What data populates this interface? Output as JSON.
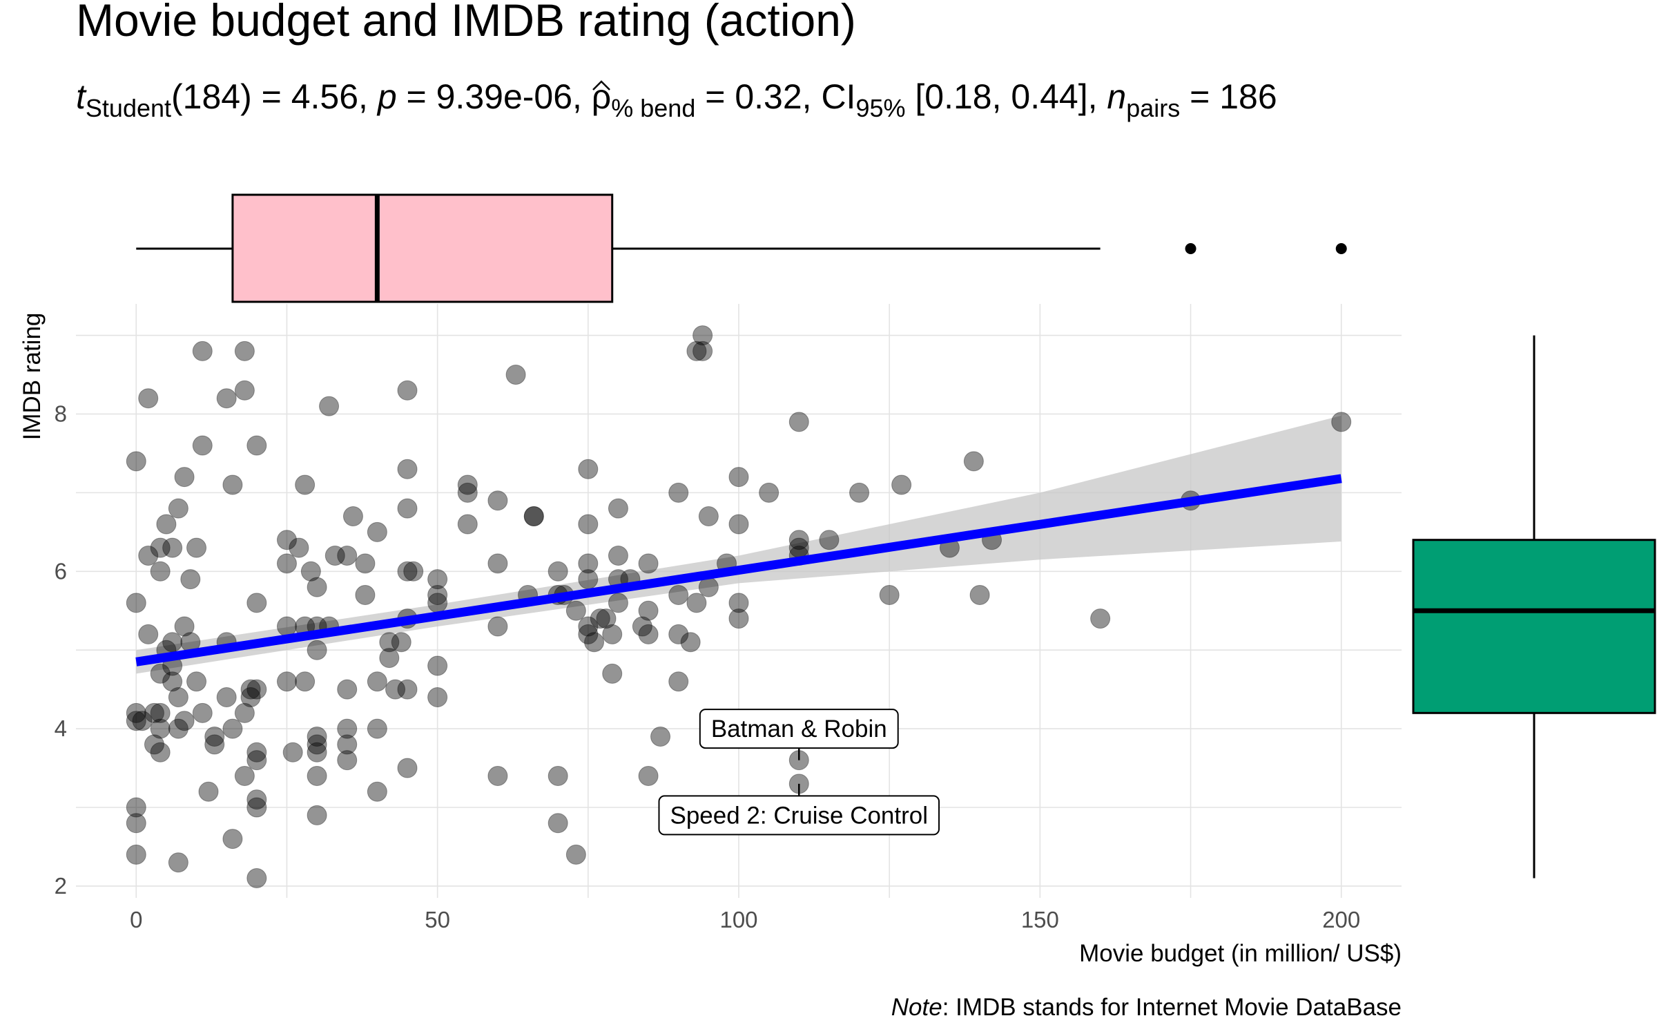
{
  "chart_data": {
    "type": "scatter",
    "title": "Movie budget and IMDB rating (action)",
    "subtitle": {
      "t_label": "t",
      "t_sub": "Student",
      "t_value": "(184) = 4.56, ",
      "p_label": "p",
      "p_value": " = 9.39e-06, ",
      "rho_label": "ρ",
      "rho_sub": "% bend",
      "rho_value": " = 0.32, CI",
      "ci_sub": "95%",
      "ci_value": " [0.18, 0.44], ",
      "n_label": "n",
      "n_sub": "pairs",
      "n_value": " = 186"
    },
    "xlabel": "Movie budget (in million/ US$)",
    "ylabel": "IMDB rating",
    "xlim": [
      -10,
      210
    ],
    "ylim": [
      1.85,
      9.4
    ],
    "x_ticks": [
      0,
      50,
      100,
      150,
      200
    ],
    "y_ticks": [
      2,
      4,
      6,
      8
    ],
    "x_tick_labels": [
      "0",
      "50",
      "100",
      "150",
      "200"
    ],
    "y_tick_labels": [
      "2",
      "4",
      "6",
      "8"
    ],
    "grid": true,
    "caption": {
      "note_label": "Note",
      "note_text": ": IMDB stands for Internet Movie DataBase"
    },
    "regression": {
      "x_start": 0,
      "y_start": 4.85,
      "x_end": 200,
      "y_end": 7.18,
      "color": "#0000ff",
      "ci_band": [
        [
          0,
          4.7,
          5.0
        ],
        [
          50,
          5.3,
          5.58
        ],
        [
          100,
          5.85,
          6.2
        ],
        [
          150,
          6.15,
          7.0
        ],
        [
          200,
          6.38,
          7.98
        ]
      ]
    },
    "labels": [
      {
        "text": "Batman & Robin",
        "x": 110,
        "y": 3.6,
        "label_y": 4.0
      },
      {
        "text": "Speed 2: Cruise Control",
        "x": 110,
        "y": 3.3,
        "label_y": 2.9
      }
    ],
    "x_boxplot": {
      "whisker_low": 0,
      "q1": 16,
      "median": 40,
      "q3": 79,
      "whisker_high": 160,
      "outliers": [
        175,
        200
      ],
      "color": "#ffc0cb"
    },
    "y_boxplot": {
      "whisker_low": 2.1,
      "q1": 4.2,
      "median": 5.5,
      "q3": 6.4,
      "whisker_high": 9.0,
      "color": "#009e73"
    },
    "points": [
      [
        0,
        2.4
      ],
      [
        0,
        2.8
      ],
      [
        0,
        3.0
      ],
      [
        0,
        4.1
      ],
      [
        0,
        4.2
      ],
      [
        0,
        5.6
      ],
      [
        0,
        7.4
      ],
      [
        1,
        4.1
      ],
      [
        2,
        5.2
      ],
      [
        2,
        6.2
      ],
      [
        2,
        8.2
      ],
      [
        3,
        3.8
      ],
      [
        3,
        4.2
      ],
      [
        4,
        3.7
      ],
      [
        4,
        4.0
      ],
      [
        4,
        4.7
      ],
      [
        4,
        6.0
      ],
      [
        4,
        6.3
      ],
      [
        4,
        4.2
      ],
      [
        5,
        5.0
      ],
      [
        5,
        6.6
      ],
      [
        6,
        4.8
      ],
      [
        6,
        5.1
      ],
      [
        6,
        6.3
      ],
      [
        6,
        4.6
      ],
      [
        7,
        2.3
      ],
      [
        7,
        4.0
      ],
      [
        7,
        4.4
      ],
      [
        7,
        6.8
      ],
      [
        8,
        7.2
      ],
      [
        8,
        5.3
      ],
      [
        8,
        4.1
      ],
      [
        9,
        5.1
      ],
      [
        9,
        5.9
      ],
      [
        10,
        4.6
      ],
      [
        10,
        6.3
      ],
      [
        11,
        8.8
      ],
      [
        11,
        7.6
      ],
      [
        11,
        4.2
      ],
      [
        12,
        3.2
      ],
      [
        13,
        3.9
      ],
      [
        13,
        3.8
      ],
      [
        15,
        5.1
      ],
      [
        15,
        4.4
      ],
      [
        15,
        8.2
      ],
      [
        16,
        7.1
      ],
      [
        16,
        2.6
      ],
      [
        16,
        4.0
      ],
      [
        18,
        8.8
      ],
      [
        18,
        4.2
      ],
      [
        18,
        3.4
      ],
      [
        18,
        8.3
      ],
      [
        19,
        4.4
      ],
      [
        19,
        4.5
      ],
      [
        20,
        2.1
      ],
      [
        20,
        3.0
      ],
      [
        20,
        3.1
      ],
      [
        20,
        3.6
      ],
      [
        20,
        3.7
      ],
      [
        20,
        5.6
      ],
      [
        20,
        7.6
      ],
      [
        20,
        4.5
      ],
      [
        25,
        5.3
      ],
      [
        25,
        6.1
      ],
      [
        25,
        6.4
      ],
      [
        25,
        4.6
      ],
      [
        26,
        3.7
      ],
      [
        27,
        6.3
      ],
      [
        28,
        4.6
      ],
      [
        28,
        7.1
      ],
      [
        29,
        6.0
      ],
      [
        30,
        2.9
      ],
      [
        30,
        3.4
      ],
      [
        30,
        3.7
      ],
      [
        30,
        3.9
      ],
      [
        30,
        3.8
      ],
      [
        30,
        5.0
      ],
      [
        30,
        5.3
      ],
      [
        30,
        5.8
      ],
      [
        32,
        8.1
      ],
      [
        32,
        5.3
      ],
      [
        33,
        6.2
      ],
      [
        35,
        3.6
      ],
      [
        35,
        3.8
      ],
      [
        35,
        4.0
      ],
      [
        35,
        4.5
      ],
      [
        35,
        6.2
      ],
      [
        36,
        6.7
      ],
      [
        38,
        5.7
      ],
      [
        38,
        6.1
      ],
      [
        40,
        3.2
      ],
      [
        40,
        4.0
      ],
      [
        40,
        4.6
      ],
      [
        40,
        6.5
      ],
      [
        42,
        4.9
      ],
      [
        43,
        4.5
      ],
      [
        44,
        5.1
      ],
      [
        45,
        3.5
      ],
      [
        45,
        4.5
      ],
      [
        45,
        5.4
      ],
      [
        45,
        6.0
      ],
      [
        45,
        6.8
      ],
      [
        45,
        7.3
      ],
      [
        45,
        8.3
      ],
      [
        46,
        6.0
      ],
      [
        50,
        4.4
      ],
      [
        50,
        4.8
      ],
      [
        50,
        5.7
      ],
      [
        50,
        5.6
      ],
      [
        50,
        5.9
      ],
      [
        55,
        6.6
      ],
      [
        55,
        7.0
      ],
      [
        55,
        7.1
      ],
      [
        60,
        3.4
      ],
      [
        60,
        5.3
      ],
      [
        60,
        6.1
      ],
      [
        60,
        6.9
      ],
      [
        63,
        8.5
      ],
      [
        65,
        5.7
      ],
      [
        66,
        6.7
      ],
      [
        66,
        6.7
      ],
      [
        70,
        2.8
      ],
      [
        70,
        3.4
      ],
      [
        70,
        6.0
      ],
      [
        70,
        5.7
      ],
      [
        71,
        5.7
      ],
      [
        73,
        2.4
      ],
      [
        73,
        5.5
      ],
      [
        75,
        5.2
      ],
      [
        75,
        5.3
      ],
      [
        75,
        5.9
      ],
      [
        75,
        6.1
      ],
      [
        75,
        6.6
      ],
      [
        75,
        7.3
      ],
      [
        76,
        5.1
      ],
      [
        77,
        5.4
      ],
      [
        78,
        5.4
      ],
      [
        79,
        4.7
      ],
      [
        79,
        5.2
      ],
      [
        80,
        5.6
      ],
      [
        80,
        5.9
      ],
      [
        80,
        6.2
      ],
      [
        80,
        6.8
      ],
      [
        82,
        5.9
      ],
      [
        84,
        5.3
      ],
      [
        85,
        3.4
      ],
      [
        85,
        5.2
      ],
      [
        85,
        5.5
      ],
      [
        85,
        6.1
      ],
      [
        87,
        3.9
      ],
      [
        90,
        4.6
      ],
      [
        90,
        5.2
      ],
      [
        90,
        5.7
      ],
      [
        90,
        7.0
      ],
      [
        92,
        5.1
      ],
      [
        93,
        8.8
      ],
      [
        93,
        5.6
      ],
      [
        94,
        9.0
      ],
      [
        94,
        8.8
      ],
      [
        95,
        5.8
      ],
      [
        95,
        6.7
      ],
      [
        98,
        6.1
      ],
      [
        100,
        5.4
      ],
      [
        100,
        5.6
      ],
      [
        100,
        6.6
      ],
      [
        100,
        7.2
      ],
      [
        105,
        7.0
      ],
      [
        110,
        6.2
      ],
      [
        110,
        6.3
      ],
      [
        110,
        6.4
      ],
      [
        110,
        7.9
      ],
      [
        110,
        3.6
      ],
      [
        110,
        3.3
      ],
      [
        115,
        6.4
      ],
      [
        120,
        7.0
      ],
      [
        125,
        5.7
      ],
      [
        127,
        7.1
      ],
      [
        135,
        6.3
      ],
      [
        139,
        7.4
      ],
      [
        140,
        5.7
      ],
      [
        142,
        6.4
      ],
      [
        160,
        5.4
      ],
      [
        175,
        6.9
      ],
      [
        200,
        7.9
      ],
      [
        42,
        5.1
      ],
      [
        28,
        5.3
      ]
    ]
  }
}
